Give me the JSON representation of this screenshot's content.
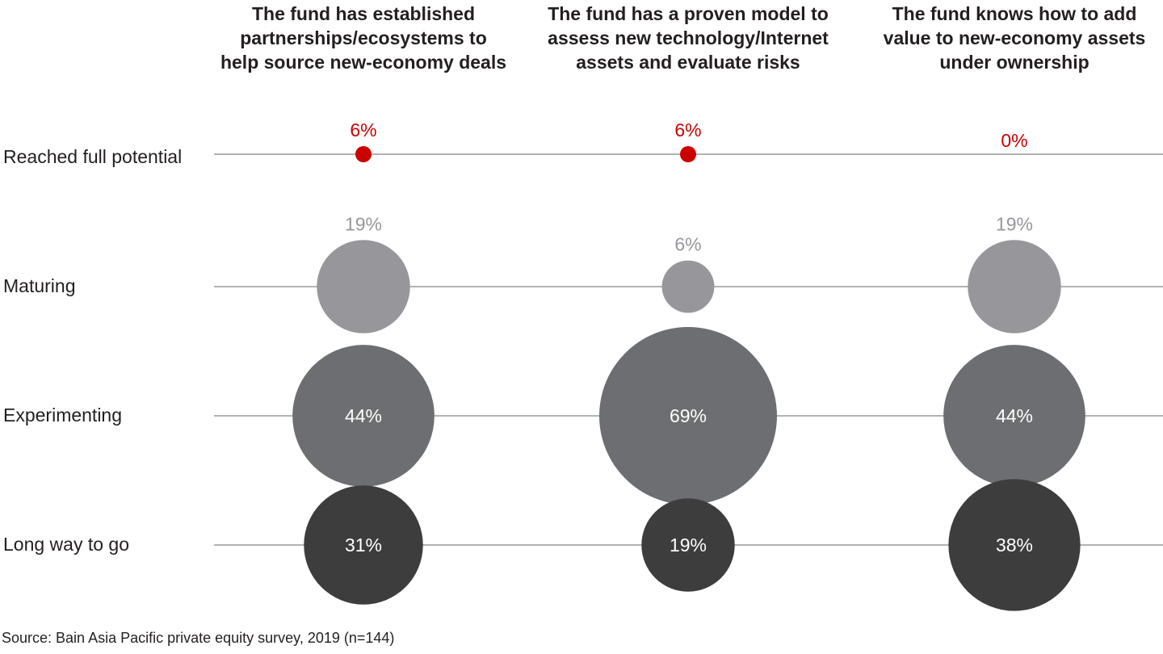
{
  "chart_data": {
    "type": "bubble-matrix",
    "columns": [
      "The fund has established partnerships/ecosystems to help source new-economy deals",
      "The fund has a proven model to assess new technology/Internet assets and evaluate risks",
      "The fund knows how to add value to new-economy assets under ownership"
    ],
    "column_lines": [
      [
        "The fund has established",
        "partnerships/ecosystems to",
        "help source new-economy deals"
      ],
      [
        "The fund has a proven model to",
        "assess new technology/Internet",
        "assets and evaluate risks"
      ],
      [
        "The fund knows how to add",
        "value to new-economy assets",
        "under ownership"
      ]
    ],
    "rows": [
      "Reached full potential",
      "Maturing",
      "Experimenting",
      "Long way to go"
    ],
    "row_colors": [
      "#cc0000",
      "#97979b",
      "#6d6e71",
      "#3d3d3d"
    ],
    "label_colors": [
      "#cc0000",
      "#97979b",
      "#ffffff",
      "#ffffff"
    ],
    "label_position": [
      "above",
      "above",
      "inside",
      "inside"
    ],
    "values": [
      [
        6,
        6,
        0
      ],
      [
        19,
        6,
        19
      ],
      [
        44,
        69,
        44
      ],
      [
        31,
        19,
        38
      ]
    ],
    "unit": "%",
    "source": "Source: Bain Asia Pacific private equity survey, 2019 (n=144)"
  }
}
